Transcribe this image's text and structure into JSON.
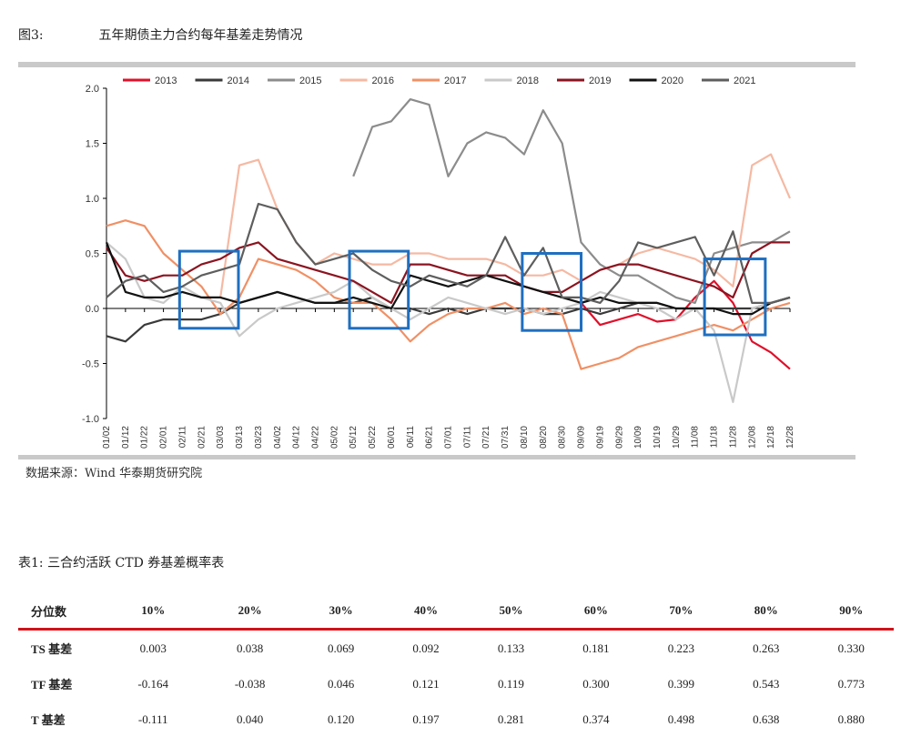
{
  "figure": {
    "label": "图3:",
    "title": "五年期债主力合约每年基差走势情况"
  },
  "source": "数据来源：Wind 华泰期货研究院",
  "table": {
    "label": "表1:",
    "title": "三合约活跃 CTD 券基差概率表",
    "headers": [
      "分位数",
      "10%",
      "20%",
      "30%",
      "40%",
      "50%",
      "60%",
      "70%",
      "80%",
      "90%"
    ],
    "rows": [
      [
        "TS 基差",
        "0.003",
        "0.038",
        "0.069",
        "0.092",
        "0.133",
        "0.181",
        "0.223",
        "0.263",
        "0.330"
      ],
      [
        "TF 基差",
        "-0.164",
        "-0.038",
        "0.046",
        "0.121",
        "0.119",
        "0.300",
        "0.399",
        "0.543",
        "0.773"
      ],
      [
        "T 基差",
        "-0.111",
        "0.040",
        "0.120",
        "0.197",
        "0.281",
        "0.374",
        "0.498",
        "0.638",
        "0.880"
      ]
    ]
  },
  "chart_data": {
    "type": "line",
    "title": "五年期债主力合约每年基差走势情况",
    "xlabel": "",
    "ylabel": "",
    "ylim": [
      -1.0,
      2.0
    ],
    "yticks": [
      "2.0",
      "1.5",
      "1.0",
      "0.5",
      "0.0",
      "-0.5",
      "-1.0"
    ],
    "x": [
      "01/02",
      "01/12",
      "01/22",
      "02/01",
      "02/11",
      "02/21",
      "03/03",
      "03/13",
      "03/23",
      "04/02",
      "04/12",
      "04/22",
      "05/02",
      "05/12",
      "05/22",
      "06/01",
      "06/11",
      "06/21",
      "07/01",
      "07/11",
      "07/21",
      "07/31",
      "08/10",
      "08/20",
      "08/30",
      "09/09",
      "09/19",
      "09/29",
      "10/09",
      "10/19",
      "10/29",
      "11/08",
      "11/18",
      "11/28",
      "12/08",
      "12/18",
      "12/28"
    ],
    "legend_position": "top",
    "grid": false,
    "series": [
      {
        "name": "2013",
        "color": "#e0102a",
        "values": [
          null,
          null,
          null,
          null,
          null,
          null,
          null,
          null,
          null,
          null,
          null,
          null,
          null,
          null,
          null,
          null,
          null,
          null,
          null,
          null,
          null,
          null,
          null,
          null,
          null,
          0.05,
          -0.15,
          -0.1,
          -0.05,
          -0.12,
          -0.1,
          0.1,
          0.25,
          0.05,
          -0.3,
          -0.4,
          -0.55
        ]
      },
      {
        "name": "2014",
        "color": "#3a3a3a",
        "values": [
          -0.25,
          -0.3,
          -0.15,
          -0.1,
          -0.1,
          -0.1,
          -0.05,
          0.05,
          0.1,
          0.15,
          0.1,
          0.05,
          0.05,
          0.05,
          0.1,
          0.0,
          0.0,
          -0.05,
          0.0,
          -0.05,
          0.0,
          0.0,
          0.0,
          -0.05,
          -0.05,
          0.0,
          -0.05,
          0.0,
          0.05,
          0.05,
          0.0,
          0.0,
          0.0,
          0.0,
          0.0,
          0.05,
          0.1
        ]
      },
      {
        "name": "2015",
        "color": "#8c8c8c",
        "values": [
          null,
          null,
          null,
          null,
          null,
          null,
          null,
          null,
          null,
          null,
          null,
          null,
          null,
          1.2,
          1.65,
          1.7,
          1.9,
          1.85,
          1.2,
          1.5,
          1.6,
          1.55,
          1.4,
          1.8,
          1.5,
          0.6,
          0.4,
          0.3,
          0.3,
          0.2,
          0.1,
          0.05,
          0.5,
          0.55,
          0.6,
          0.6,
          0.7
        ]
      },
      {
        "name": "2016",
        "color": "#f5b9a3",
        "values": [
          null,
          null,
          null,
          null,
          null,
          null,
          0.1,
          1.3,
          1.35,
          0.9,
          0.6,
          0.4,
          0.5,
          0.45,
          0.4,
          0.4,
          0.5,
          0.5,
          0.45,
          0.45,
          0.45,
          0.4,
          0.3,
          0.3,
          0.35,
          0.25,
          0.35,
          0.4,
          0.5,
          0.55,
          0.5,
          0.45,
          0.35,
          0.2,
          1.3,
          1.4,
          1.0
        ]
      },
      {
        "name": "2017",
        "color": "#f09065",
        "values": [
          0.75,
          0.8,
          0.75,
          0.5,
          0.35,
          0.2,
          -0.05,
          0.1,
          0.45,
          0.4,
          0.35,
          0.25,
          0.1,
          0.05,
          0.05,
          -0.1,
          -0.3,
          -0.15,
          -0.05,
          0.0,
          0.0,
          0.05,
          -0.05,
          0.0,
          -0.05,
          -0.55,
          -0.5,
          -0.45,
          -0.35,
          -0.3,
          -0.25,
          -0.2,
          -0.15,
          -0.2,
          -0.1,
          0.0,
          0.05
        ]
      },
      {
        "name": "2018",
        "color": "#c9c9c9",
        "values": [
          0.6,
          0.45,
          0.1,
          0.05,
          0.2,
          0.1,
          0.05,
          -0.25,
          -0.1,
          0.0,
          0.05,
          0.1,
          0.15,
          0.25,
          0.1,
          0.0,
          -0.1,
          0.0,
          0.1,
          0.05,
          0.0,
          -0.05,
          0.0,
          -0.05,
          0.0,
          0.05,
          0.15,
          0.1,
          0.05,
          0.0,
          -0.1,
          0.0,
          -0.2,
          -0.85,
          0.0,
          0.05,
          0.1
        ]
      },
      {
        "name": "2019",
        "color": "#8b1420",
        "values": [
          0.55,
          0.3,
          0.25,
          0.3,
          0.3,
          0.4,
          0.45,
          0.55,
          0.6,
          0.45,
          0.4,
          0.35,
          0.3,
          0.25,
          0.15,
          0.05,
          0.4,
          0.4,
          0.35,
          0.3,
          0.3,
          0.3,
          0.2,
          0.15,
          0.15,
          0.25,
          0.35,
          0.4,
          0.4,
          0.35,
          0.3,
          0.25,
          0.2,
          0.1,
          0.5,
          0.6,
          0.6
        ]
      },
      {
        "name": "2020",
        "color": "#111111",
        "values": [
          0.6,
          0.15,
          0.1,
          0.1,
          0.15,
          0.1,
          0.1,
          0.05,
          0.1,
          0.15,
          0.1,
          0.05,
          0.05,
          0.1,
          0.05,
          0.0,
          0.3,
          0.25,
          0.2,
          0.25,
          0.3,
          0.25,
          0.2,
          0.15,
          0.1,
          0.05,
          0.1,
          0.05,
          0.05,
          0.05,
          0.0,
          0.0,
          0.0,
          -0.05,
          -0.05,
          0.05,
          0.1
        ]
      },
      {
        "name": "2021",
        "color": "#5e5e5e",
        "values": [
          0.1,
          0.25,
          0.3,
          0.15,
          0.2,
          0.3,
          0.35,
          0.4,
          0.95,
          0.9,
          0.6,
          0.4,
          0.45,
          0.5,
          0.35,
          0.25,
          0.2,
          0.3,
          0.25,
          0.2,
          0.3,
          0.65,
          0.3,
          0.55,
          0.1,
          0.1,
          0.05,
          0.25,
          0.6,
          0.55,
          0.6,
          0.65,
          0.3,
          0.7,
          0.05,
          0.05,
          0.1
        ]
      }
    ],
    "annotation_boxes": 4
  }
}
